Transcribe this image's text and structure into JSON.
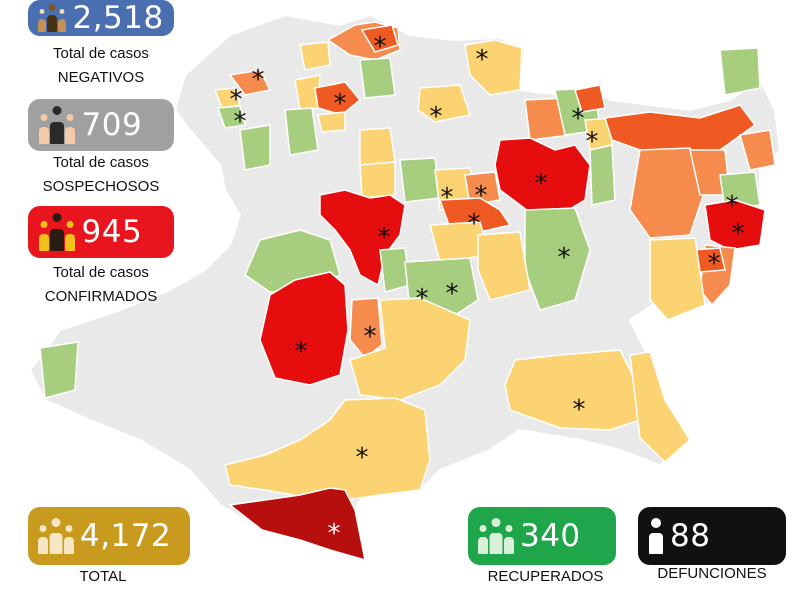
{
  "colors": {
    "negativos": "#4a6fb0",
    "sospechosos": "#a0a0a0",
    "confirmados": "#e8141e",
    "total": "#c89a1d",
    "recuperados": "#20a64a",
    "defunciones": "#111111",
    "level_none": "#e9e9e9",
    "level_green": "#a7cd7f",
    "level_yellow": "#fcd373",
    "level_orange": "#f58b4c",
    "level_darkorange": "#ee5a22",
    "level_red": "#e50d0d",
    "level_darkred": "#b70e0e"
  },
  "stats": {
    "negativos": {
      "value": "2,518",
      "line1": "Total de casos",
      "line2": "NEGATIVOS",
      "icon": "people-group-icon"
    },
    "sospechosos": {
      "value": "709",
      "line1": "Total de casos",
      "line2": "SOSPECHOSOS",
      "icon": "people-group-icon"
    },
    "confirmados": {
      "value": "945",
      "line1": "Total de casos",
      "line2": "CONFIRMADOS",
      "icon": "people-group-icon"
    },
    "total": {
      "value": "4,172",
      "label": "TOTAL",
      "icon": "people-group-icon"
    },
    "recuperados": {
      "value": "340",
      "label": "RECUPERADOS",
      "icon": "people-group-icon"
    },
    "defunciones": {
      "value": "88",
      "label": "DEFUNCIONES",
      "icon": "person-icon"
    }
  },
  "map": {
    "region": "Michoacán municipalities",
    "marker": "*"
  }
}
